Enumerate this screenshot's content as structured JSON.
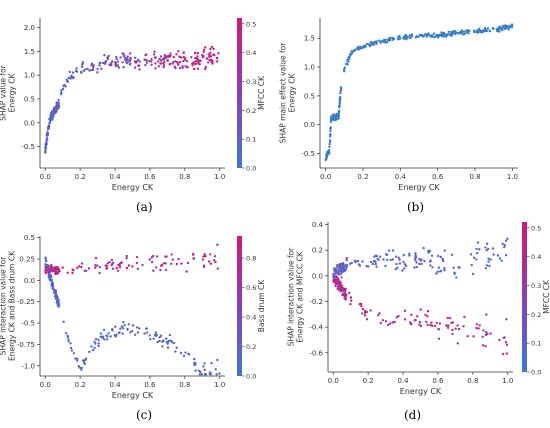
{
  "figure": {
    "captions": [
      "(a)",
      "(b)",
      "(c)",
      "(d)"
    ]
  },
  "colors": {
    "low": "#3c78d8",
    "high": "#d0187a",
    "axis": "#333333",
    "single": "#3b7fc4"
  },
  "chart_data": [
    {
      "type": "scatter",
      "panel": "a",
      "xlabel": "Energy CK",
      "ylabel": "SHAP value for\nEnergy CK",
      "xlim": [
        -0.03,
        1.03
      ],
      "ylim": [
        -0.95,
        2.2
      ],
      "xticks": [
        0.0,
        0.2,
        0.4,
        0.6,
        0.8,
        1.0
      ],
      "yticks": [
        -0.5,
        0.0,
        0.5,
        1.0,
        1.5,
        2.0
      ],
      "colorbar": {
        "label": "MFCC CK",
        "ticks": [
          0.0,
          0.1,
          0.2,
          0.3,
          0.4,
          0.5
        ],
        "range": [
          0,
          0.52
        ]
      },
      "series": [
        {
          "x": [
            0.0,
            0.005,
            0.01,
            0.015,
            0.02,
            0.025,
            0.03,
            0.04,
            0.05,
            0.06,
            0.07,
            0.08,
            0.09,
            0.1,
            0.12,
            0.14,
            0.16,
            0.18,
            0.2,
            0.25,
            0.3,
            0.35,
            0.4,
            0.45,
            0.5,
            0.6,
            0.7,
            0.8,
            0.9,
            1.0
          ],
          "y": [
            -0.6,
            -0.45,
            -0.3,
            -0.2,
            -0.1,
            0.0,
            0.1,
            0.15,
            0.2,
            0.3,
            0.35,
            0.4,
            0.6,
            0.7,
            0.8,
            0.95,
            1.05,
            1.1,
            1.15,
            1.2,
            1.2,
            1.25,
            1.3,
            1.35,
            1.3,
            1.3,
            1.35,
            1.3,
            1.35,
            1.4
          ]
        }
      ]
    },
    {
      "type": "scatter",
      "panel": "b",
      "xlabel": "Energy CK",
      "ylabel": "SHAP main effect value for\nEnergy CK",
      "xlim": [
        -0.03,
        1.03
      ],
      "ylim": [
        -0.75,
        1.85
      ],
      "xticks": [
        0.0,
        0.2,
        0.4,
        0.6,
        0.8,
        1.0
      ],
      "yticks": [
        -0.5,
        0.0,
        0.5,
        1.0,
        1.5
      ],
      "series": [
        {
          "x": [
            0.0,
            0.01,
            0.02,
            0.03,
            0.05,
            0.07,
            0.08,
            0.09,
            0.1,
            0.12,
            0.14,
            0.16,
            0.2,
            0.25,
            0.3,
            0.4,
            0.5,
            0.6,
            0.7,
            0.8,
            0.9,
            1.0
          ],
          "y": [
            -0.6,
            -0.5,
            -0.45,
            0.12,
            0.13,
            0.15,
            0.55,
            0.8,
            0.95,
            1.1,
            1.25,
            1.3,
            1.35,
            1.4,
            1.45,
            1.5,
            1.55,
            1.55,
            1.6,
            1.62,
            1.65,
            1.7
          ]
        }
      ]
    },
    {
      "type": "scatter",
      "panel": "c",
      "xlabel": "Energy CK",
      "ylabel": "SHAP interaction value for\nEnergy CK and Bass drum CK",
      "xlim": [
        -0.03,
        1.03
      ],
      "ylim": [
        -1.12,
        0.52
      ],
      "xticks": [
        0.0,
        0.2,
        0.4,
        0.6,
        0.8,
        1.0
      ],
      "yticks": [
        -1.0,
        -0.75,
        -0.5,
        -0.25,
        0.0,
        0.25,
        0.5
      ],
      "colorbar": {
        "label": "Bass drum CK",
        "ticks": [
          0.0,
          0.2,
          0.4,
          0.6,
          0.8
        ],
        "range": [
          0,
          0.95
        ]
      },
      "series": [
        {
          "x": [
            0.0,
            0.01,
            0.02,
            0.05,
            0.08,
            0.1,
            0.12,
            0.15,
            0.2,
            0.25,
            0.3,
            0.4,
            0.5,
            0.6,
            0.7,
            0.8,
            0.9,
            1.0
          ],
          "y": [
            0.25,
            0.15,
            0.1,
            -0.1,
            -0.3,
            -0.45,
            -0.6,
            -0.8,
            -1.0,
            -0.9,
            -0.7,
            -0.6,
            -0.55,
            -0.65,
            -0.7,
            -0.9,
            -1.05,
            -1.08
          ]
        },
        {
          "x": [
            0.1,
            0.2,
            0.3,
            0.4,
            0.5,
            0.6,
            0.7,
            0.8,
            0.9,
            1.0
          ],
          "y": [
            0.12,
            0.15,
            0.18,
            0.2,
            0.2,
            0.22,
            0.2,
            0.22,
            0.25,
            0.28
          ]
        }
      ]
    },
    {
      "type": "scatter",
      "panel": "d",
      "xlabel": "Energy CK",
      "ylabel": "SHAP interaction value for\nEnergy CK and MFCC CK",
      "xlim": [
        -0.03,
        1.03
      ],
      "ylim": [
        -0.75,
        0.42
      ],
      "xticks": [
        0.0,
        0.2,
        0.4,
        0.6,
        0.8,
        1.0
      ],
      "yticks": [
        -0.6,
        -0.4,
        -0.2,
        0.0,
        0.2,
        0.4
      ],
      "colorbar": {
        "label": "MFCC CK",
        "ticks": [
          0.0,
          0.1,
          0.2,
          0.3,
          0.4,
          0.5
        ],
        "range": [
          0,
          0.52
        ]
      },
      "series": [
        {
          "x": [
            0.0,
            0.02,
            0.05,
            0.1,
            0.2,
            0.3,
            0.4,
            0.5,
            0.6,
            0.7,
            0.8,
            0.9,
            1.0
          ],
          "y": [
            0.0,
            0.05,
            0.05,
            0.1,
            0.1,
            0.12,
            0.1,
            0.12,
            0.1,
            0.1,
            0.12,
            0.15,
            0.2
          ]
        },
        {
          "x": [
            0.0,
            0.02,
            0.05,
            0.1,
            0.2,
            0.3,
            0.4,
            0.5,
            0.6,
            0.7,
            0.8,
            0.9,
            1.0
          ],
          "y": [
            0.0,
            -0.05,
            -0.1,
            -0.2,
            -0.3,
            -0.35,
            -0.35,
            -0.38,
            -0.4,
            -0.4,
            -0.42,
            -0.45,
            -0.5
          ]
        }
      ]
    }
  ]
}
